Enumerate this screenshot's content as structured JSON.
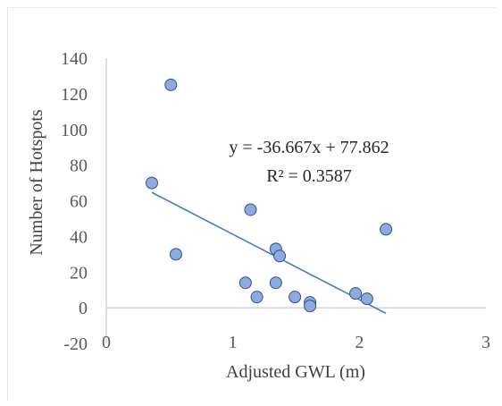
{
  "chart_data": {
    "type": "scatter",
    "xlabel": "Adjusted GWL (m)",
    "ylabel": "Number of  Hotspots",
    "xlim": [
      0,
      3
    ],
    "ylim": [
      -20,
      140
    ],
    "x_ticks": [
      "0",
      "1",
      "2",
      "3"
    ],
    "y_ticks": [
      "-20",
      "0",
      "20",
      "40",
      "60",
      "80",
      "100",
      "120",
      "140"
    ],
    "grid": false,
    "legend": "none",
    "points": [
      {
        "x": 0.51,
        "y": 125
      },
      {
        "x": 0.36,
        "y": 70
      },
      {
        "x": 0.55,
        "y": 30
      },
      {
        "x": 1.14,
        "y": 55
      },
      {
        "x": 1.1,
        "y": 14
      },
      {
        "x": 1.19,
        "y": 6
      },
      {
        "x": 1.34,
        "y": 33
      },
      {
        "x": 1.37,
        "y": 29
      },
      {
        "x": 1.34,
        "y": 14
      },
      {
        "x": 1.49,
        "y": 6
      },
      {
        "x": 1.61,
        "y": 3
      },
      {
        "x": 1.61,
        "y": 1
      },
      {
        "x": 1.97,
        "y": 8
      },
      {
        "x": 2.06,
        "y": 5
      },
      {
        "x": 2.21,
        "y": 44
      }
    ],
    "trendline": {
      "type": "linear",
      "slope": -36.667,
      "intercept": 77.862,
      "x_range": [
        0.36,
        2.21
      ],
      "equation": "y = -36.667x + 77.862",
      "r_squared": "R² = 0.3587"
    },
    "colors": {
      "marker_fill": "#8FAADC",
      "marker_stroke": "#2F528F",
      "trendline": "#4472C4",
      "axis": "#BFBFBF"
    }
  }
}
